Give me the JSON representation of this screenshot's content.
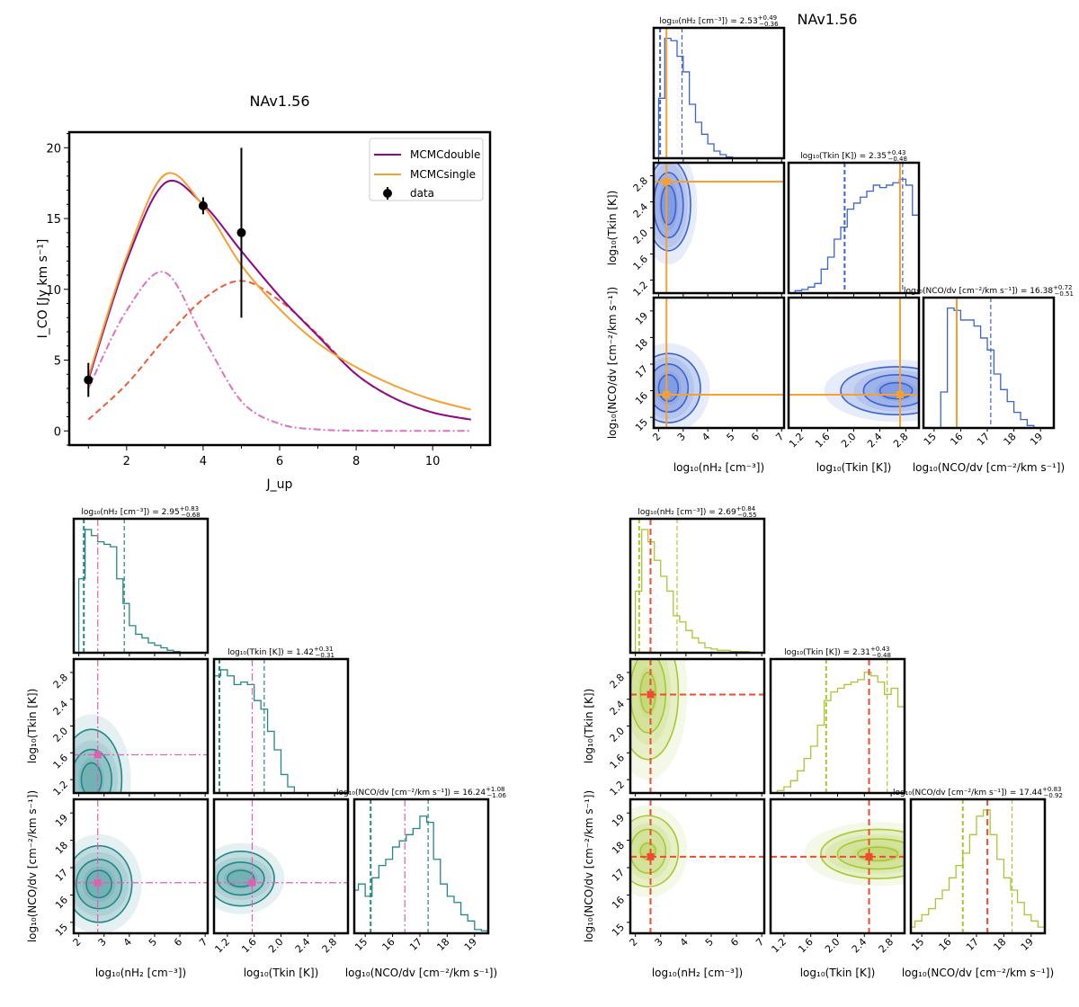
{
  "chart_data": [
    {
      "type": "line",
      "title": "NAv1.56",
      "xlabel": "J_up",
      "ylabel": "I_CO [Jy km s⁻¹]",
      "xlim": [
        0.5,
        11.5
      ],
      "ylim": [
        -1,
        21.1
      ],
      "xticks": [
        2,
        4,
        6,
        8,
        10
      ],
      "yticks": [
        0,
        5,
        10,
        15,
        20
      ],
      "grid": false,
      "legend_position": "top-right",
      "x": [
        1,
        2,
        3,
        4,
        5,
        6,
        7,
        8,
        9,
        10,
        11
      ],
      "series": [
        {
          "name": "MCMC_double",
          "legend": "MCMCdouble",
          "color": "#8b0a8b",
          "style": "solid",
          "values": [
            3.6,
            12.0,
            17.5,
            16.0,
            12.7,
            9.5,
            6.7,
            4.0,
            2.3,
            1.3,
            0.8
          ]
        },
        {
          "name": "MCMC_single",
          "legend": "MCMCsingle",
          "color": "#f7a030",
          "style": "solid",
          "values": [
            3.8,
            12.3,
            18.1,
            15.9,
            11.7,
            8.6,
            6.2,
            4.5,
            3.2,
            2.2,
            1.5
          ]
        },
        {
          "color": "#e070c0",
          "style": "dashdot",
          "values": [
            3.0,
            8.5,
            11.2,
            6.6,
            2.1,
            0.5,
            0.1,
            0.02,
            0,
            0,
            0
          ]
        },
        {
          "color": "#f05a3a",
          "style": "dashed",
          "values": [
            0.8,
            3.3,
            6.5,
            9.3,
            10.6,
            9.2,
            6.8,
            4.0,
            2.3,
            1.3,
            0.8
          ]
        }
      ],
      "data_points": {
        "name": "data",
        "x": [
          1,
          4,
          5
        ],
        "y": [
          3.6,
          15.9,
          14.0
        ],
        "yerr": [
          1.2,
          0.6,
          6.0
        ],
        "color": "#000000"
      }
    },
    {
      "type": "corner",
      "title": "NAv1.56",
      "color": "#3a63d4",
      "truth_color": "#f7a030",
      "truth_style": "solid",
      "truths": [
        2.32,
        2.71,
        15.85
      ],
      "quantiles": [
        [
          2.06,
          2.95
        ],
        [
          1.86,
          2.75
        ],
        [
          15.85,
          17.13
        ]
      ],
      "params": [
        {
          "label": "log₁₀(nH₂ [cm⁻³])",
          "title": "log₁₀(nH₂ [cm⁻³]) = 2.53",
          "plus": "+0.49",
          "minus": "−0.36",
          "range": [
            1.8,
            7.1
          ],
          "ticks": [
            "2",
            "3",
            "4",
            "5",
            "6",
            "7"
          ],
          "hist": [
            0.5,
            1.0,
            0.98,
            0.85,
            0.72,
            0.45,
            0.3,
            0.2,
            0.12,
            0.06,
            0.03,
            0.01,
            0,
            0,
            0,
            0,
            0,
            0,
            0,
            0
          ],
          "hist_range": [
            2,
            7
          ]
        },
        {
          "label": "log₁₀(Tkin [K])",
          "title": "log₁₀(Tkin [K]) = 2.35",
          "plus": "+0.43",
          "minus": "−0.48",
          "range": [
            1.0,
            3.0
          ],
          "ticks": [
            "1.2",
            "1.6",
            "2.0",
            "2.4",
            "2.8"
          ],
          "hist": [
            0,
            0.02,
            0.03,
            0.05,
            0.08,
            0.2,
            0.3,
            0.45,
            0.55,
            0.7,
            0.75,
            0.8,
            0.85,
            0.9,
            0.88,
            0.9,
            0.92,
            0.95,
            0.9,
            0.65
          ],
          "hist_range": [
            1.0,
            3.0
          ]
        },
        {
          "label": "log₁₀(NCO/dv [cm⁻²/km s⁻¹])",
          "title": "log₁₀(NCO/dv [cm⁻²/km s⁻¹]) = 16.38",
          "plus": "+0.72",
          "minus": "−0.51",
          "range": [
            14.6,
            19.5
          ],
          "ticks": [
            "15",
            "16",
            "17",
            "18",
            "19"
          ],
          "hist": [
            0,
            0,
            0,
            0.3,
            1.0,
            0.98,
            0.9,
            0.9,
            0.85,
            0.75,
            0.65,
            0.45,
            0.32,
            0.22,
            0.13,
            0.07,
            0.02,
            0,
            0,
            0
          ],
          "hist_range": [
            14.5,
            19.5
          ]
        }
      ],
      "contours": [
        {
          "pair": [
            0,
            1
          ],
          "center": [
            2.4,
            2.35
          ],
          "rx": [
            0.3,
            0.6,
            0.9
          ],
          "ry": [
            0.3,
            0.5,
            0.7
          ]
        },
        {
          "pair": [
            0,
            2
          ],
          "center": [
            2.4,
            16.1
          ],
          "rx": [
            0.4,
            0.8,
            1.3
          ],
          "ry": [
            0.5,
            0.9,
            1.3
          ]
        },
        {
          "pair": [
            1,
            2
          ],
          "center": [
            2.65,
            16.0
          ],
          "rx": [
            0.25,
            0.5,
            0.85
          ],
          "ry": [
            0.3,
            0.6,
            0.9
          ]
        }
      ]
    },
    {
      "type": "corner",
      "color": "#23878a",
      "truth_color": "#e060b0",
      "truth_style": "dashdot",
      "truths": [
        2.75,
        1.57,
        16.45
      ],
      "quantiles": [
        [
          2.2,
          3.8
        ],
        [
          1.08,
          1.75
        ],
        [
          15.2,
          17.3
        ]
      ],
      "params": [
        {
          "label": "log₁₀(nH₂ [cm⁻³])",
          "title": "log₁₀(nH₂ [cm⁻³]) = 2.95",
          "plus": "+0.83",
          "minus": "−0.68",
          "range": [
            1.8,
            7.1
          ],
          "ticks": [
            "2",
            "3",
            "4",
            "5",
            "6",
            "7"
          ],
          "hist": [
            0.6,
            1.0,
            0.95,
            0.9,
            0.88,
            0.86,
            0.6,
            0.4,
            0.22,
            0.15,
            0.12,
            0.08,
            0.06,
            0.04,
            0.02,
            0.01,
            0,
            0,
            0,
            0
          ],
          "hist_range": [
            2,
            7
          ]
        },
        {
          "label": "log₁₀(Tkin [K])",
          "title": "log₁₀(Tkin [K]) = 1.42",
          "plus": "+0.31",
          "minus": "−0.31",
          "range": [
            1.0,
            3.0
          ],
          "ticks": [
            "1.2",
            "1.6",
            "2.0",
            "2.4",
            "2.8"
          ],
          "hist": [
            0.95,
            1.0,
            0.95,
            0.88,
            0.9,
            0.88,
            0.75,
            0.68,
            0.5,
            0.35,
            0.15,
            0.05,
            0,
            0,
            0,
            0,
            0,
            0,
            0,
            0
          ],
          "hist_range": [
            1.0,
            3.0
          ]
        },
        {
          "label": "log₁₀(NCO/dv [cm⁻²/km s⁻¹])",
          "title": "log₁₀(NCO/dv [cm⁻²/km s⁻¹]) = 16.24",
          "plus": "+1.08",
          "minus": "−1.06",
          "range": [
            14.6,
            19.5
          ],
          "ticks": [
            "15",
            "16",
            "17",
            "18",
            "19"
          ],
          "hist": [
            0.35,
            0.4,
            0.3,
            0.45,
            0.55,
            0.6,
            0.7,
            0.75,
            0.8,
            0.85,
            0.95,
            0.9,
            0.6,
            0.4,
            0.3,
            0.25,
            0.15,
            0.1,
            0.03,
            0.02
          ],
          "hist_range": [
            14.5,
            19.5
          ]
        }
      ],
      "contours": [
        {
          "pair": [
            0,
            1
          ],
          "center": [
            2.5,
            1.2
          ],
          "rx": [
            0.4,
            0.8,
            1.2
          ],
          "ry": [
            0.25,
            0.45,
            0.75
          ]
        },
        {
          "pair": [
            0,
            2
          ],
          "center": [
            2.8,
            16.4
          ],
          "rx": [
            0.5,
            0.9,
            1.3
          ],
          "ry": [
            0.5,
            0.9,
            1.4
          ]
        },
        {
          "pair": [
            1,
            2
          ],
          "center": [
            1.4,
            16.6
          ],
          "rx": [
            0.2,
            0.35,
            0.5
          ],
          "ry": [
            0.3,
            0.6,
            1.0
          ]
        }
      ]
    },
    {
      "type": "corner",
      "color": "#a8c832",
      "truth_color": "#f04a30",
      "truth_style": "dashed",
      "truths": [
        2.6,
        2.47,
        17.4
      ],
      "quantiles": [
        [
          2.15,
          3.65
        ],
        [
          1.83,
          2.74
        ],
        [
          16.5,
          18.3
        ]
      ],
      "params": [
        {
          "label": "log₁₀(nH₂ [cm⁻³])",
          "title": "log₁₀(nH₂ [cm⁻³]) = 2.69",
          "plus": "+0.84",
          "minus": "−0.55",
          "range": [
            1.8,
            7.1
          ],
          "ticks": [
            "2",
            "3",
            "4",
            "5",
            "6",
            "7"
          ],
          "hist": [
            0.5,
            1.0,
            0.9,
            0.75,
            0.62,
            0.5,
            0.3,
            0.25,
            0.18,
            0.12,
            0.08,
            0.04,
            0.03,
            0.02,
            0.02,
            0.01,
            0.01,
            0.01,
            0,
            0
          ],
          "hist_range": [
            2,
            7
          ]
        },
        {
          "label": "log₁₀(Tkin [K])",
          "title": "log₁₀(Tkin [K]) = 2.31",
          "plus": "+0.43",
          "minus": "−0.48",
          "range": [
            1.0,
            3.0
          ],
          "ticks": [
            "1.2",
            "1.6",
            "2.0",
            "2.4",
            "2.8"
          ],
          "hist": [
            0,
            0.02,
            0.05,
            0.1,
            0.18,
            0.28,
            0.38,
            0.55,
            0.75,
            0.82,
            0.85,
            0.88,
            0.9,
            0.92,
            0.98,
            0.95,
            0.9,
            0.8,
            0.85,
            0.7
          ],
          "hist_range": [
            1.0,
            3.0
          ]
        },
        {
          "label": "log₁₀(NCO/dv [cm⁻²/km s⁻¹])",
          "title": "log₁₀(NCO/dv [cm⁻²/km s⁻¹]) = 17.44",
          "plus": "+0.83",
          "minus": "−0.92",
          "range": [
            14.6,
            19.5
          ],
          "ticks": [
            "15",
            "16",
            "17",
            "18",
            "19"
          ],
          "hist": [
            0.05,
            0.1,
            0.15,
            0.2,
            0.28,
            0.35,
            0.45,
            0.55,
            0.65,
            0.8,
            0.95,
            1.0,
            0.8,
            0.6,
            0.45,
            0.35,
            0.25,
            0.15,
            0.1,
            0.05
          ],
          "hist_range": [
            14.5,
            19.5
          ]
        }
      ],
      "contours": [
        {
          "pair": [
            0,
            1
          ],
          "center": [
            2.5,
            2.5
          ],
          "rx": [
            0.3,
            0.7,
            1.2
          ],
          "ry": [
            0.3,
            0.6,
            1.0
          ]
        },
        {
          "pair": [
            0,
            2
          ],
          "center": [
            2.5,
            17.6
          ],
          "rx": [
            0.3,
            0.7,
            1.2
          ],
          "ry": [
            0.3,
            0.8,
            1.3
          ]
        },
        {
          "pair": [
            1,
            2
          ],
          "center": [
            2.6,
            17.5
          ],
          "rx": [
            0.3,
            0.6,
            0.85
          ],
          "ry": [
            0.25,
            0.55,
            0.9
          ]
        }
      ]
    }
  ]
}
